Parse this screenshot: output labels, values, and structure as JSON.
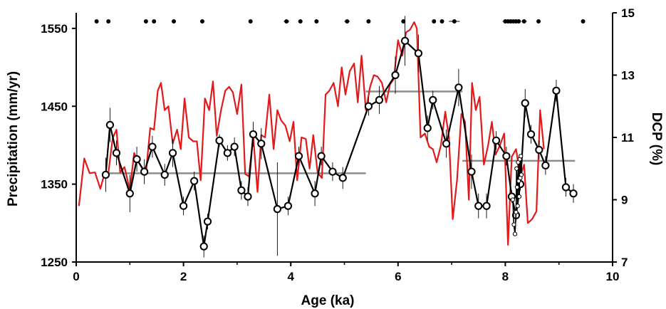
{
  "chart_data": {
    "type": "line",
    "xlabel": "Age (ka)",
    "ylabel": "Precipitation (mm/yr)",
    "y2label": "DCP (%)",
    "xlim": [
      0,
      10
    ],
    "ylim": [
      1250,
      1570
    ],
    "y2lim": [
      7,
      15
    ],
    "x_ticks": [
      "0",
      "2",
      "4",
      "6",
      "8",
      "10"
    ],
    "y_ticks": [
      "1250",
      "1350",
      "1450",
      "1550"
    ],
    "y2_ticks": [
      "7",
      "9",
      "11",
      "13",
      "15"
    ],
    "colors": {
      "red": "#e31a1c",
      "black": "#000000",
      "gray": "#8c8c8c"
    },
    "series": [
      {
        "axis": "left",
        "style": "red line",
        "x": [
          0.05,
          0.15,
          0.25,
          0.35,
          0.45,
          0.52,
          0.6,
          0.68,
          0.75,
          0.82,
          0.9,
          1.0,
          1.08,
          1.15,
          1.22,
          1.3,
          1.38,
          1.45,
          1.52,
          1.58,
          1.65,
          1.72,
          1.8,
          1.88,
          1.95,
          2.02,
          2.1,
          2.18,
          2.25,
          2.32,
          2.4,
          2.48,
          2.55,
          2.62,
          2.7,
          2.78,
          2.85,
          2.92,
          3.0,
          3.08,
          3.15,
          3.22,
          3.3,
          3.38,
          3.45,
          3.52,
          3.6,
          3.68,
          3.75,
          3.82,
          3.9,
          3.98,
          4.05,
          4.12,
          4.2,
          4.28,
          4.35,
          4.42,
          4.5,
          4.58,
          4.65,
          4.72,
          4.8,
          4.88,
          4.95,
          5.02,
          5.1,
          5.18,
          5.25,
          5.32,
          5.4,
          5.48,
          5.55,
          5.62,
          5.7,
          5.78,
          5.85,
          5.92,
          6.0,
          6.08,
          6.15,
          6.22,
          6.3,
          6.35,
          6.42,
          6.5,
          6.58,
          6.65,
          6.72,
          6.8,
          6.88,
          6.95,
          7.02,
          7.1,
          7.18,
          7.25,
          7.32,
          7.38,
          7.45,
          7.52,
          7.6,
          7.68,
          7.75,
          7.82,
          7.9,
          7.98,
          8.05,
          8.12,
          8.2,
          8.28,
          8.35,
          8.42,
          8.5,
          8.58,
          8.65,
          8.72
        ],
        "y": [
          1322,
          1383,
          1364,
          1365,
          1344,
          1362,
          1365,
          1409,
          1420,
          1365,
          1372,
          1342,
          1390,
          1380,
          1372,
          1365,
          1422,
          1420,
          1470,
          1480,
          1445,
          1450,
          1402,
          1420,
          1395,
          1460,
          1410,
          1405,
          1405,
          1355,
          1460,
          1445,
          1482,
          1412,
          1445,
          1470,
          1475,
          1468,
          1440,
          1478,
          1363,
          1360,
          1412,
          1340,
          1413,
          1410,
          1465,
          1395,
          1445,
          1432,
          1425,
          1405,
          1430,
          1355,
          1410,
          1408,
          1370,
          1413,
          1365,
          1358,
          1465,
          1470,
          1480,
          1450,
          1500,
          1465,
          1495,
          1505,
          1455,
          1515,
          1445,
          1475,
          1490,
          1488,
          1480,
          1455,
          1478,
          1485,
          1535,
          1515,
          1545,
          1548,
          1558,
          1550,
          1410,
          1415,
          1398,
          1395,
          1378,
          1400,
          1443,
          1410,
          1305,
          1355,
          1440,
          1430,
          1330,
          1480,
          1445,
          1462,
          1375,
          1400,
          1430,
          1388,
          1400,
          1415,
          1272,
          1385,
          1395,
          1360,
          1375,
          1300,
          1305,
          1315,
          1445,
          1395
        ]
      },
      {
        "axis": "right",
        "style": "black line with open circles",
        "x": [
          0.55,
          0.63,
          0.75,
          1.0,
          1.13,
          1.27,
          1.42,
          1.65,
          1.8,
          2.0,
          2.2,
          2.38,
          2.45,
          2.67,
          2.82,
          2.95,
          3.08,
          3.2,
          3.3,
          3.45,
          3.75,
          3.95,
          4.15,
          4.45,
          4.57,
          4.78,
          4.97,
          5.45,
          5.65,
          5.95,
          6.13,
          6.38,
          6.55,
          6.65,
          6.9,
          7.13,
          7.37,
          7.5,
          7.65,
          7.83,
          8.02,
          8.12,
          8.2,
          8.28,
          8.37,
          8.48,
          8.63,
          8.75,
          8.95,
          9.13,
          9.27
        ],
        "y": [
          9.8,
          11.4,
          10.5,
          9.2,
          10.3,
          9.9,
          10.7,
          9.8,
          10.5,
          8.8,
          9.6,
          7.5,
          8.3,
          10.9,
          10.5,
          10.7,
          9.3,
          9.1,
          11.1,
          10.8,
          8.7,
          8.8,
          10.4,
          9.2,
          10.4,
          9.9,
          9.7,
          12.0,
          12.2,
          13.0,
          14.1,
          13.7,
          11.3,
          12.2,
          10.8,
          12.6,
          9.9,
          8.8,
          8.8,
          10.9,
          10.4,
          9.1,
          8.5,
          9.5,
          12.1,
          11.1,
          10.6,
          10.1,
          12.5,
          9.4,
          9.2
        ],
        "y_err": [
          0.55,
          0.55,
          0.4,
          0.6,
          0.4,
          0.4,
          0.35,
          0.35,
          0.45,
          0.3,
          0.3,
          0.35,
          0.25,
          0.2,
          0.25,
          0.3,
          0.3,
          0.3,
          0.4,
          0.5,
          1.5,
          0.3,
          0.3,
          0.4,
          0.3,
          0.3,
          0.35,
          0.3,
          0.45,
          0.6,
          0.8,
          0.6,
          0.4,
          0.3,
          0.45,
          0.6,
          0.55,
          0.4,
          0.4,
          0.3,
          0.3,
          0.2,
          0.2,
          0.2,
          0.45,
          0.3,
          0.3,
          0.3,
          0.35,
          0.3,
          0.3
        ]
      },
      {
        "axis": "right",
        "style": "small open circles cluster",
        "x": [
          8.14,
          8.16,
          8.18,
          8.2,
          8.21,
          8.22,
          8.23,
          8.24,
          8.25,
          8.26,
          8.27,
          8.28,
          8.29,
          8.3
        ],
        "y": [
          9.0,
          8.2,
          7.9,
          8.6,
          10.0,
          9.4,
          8.8,
          10.2,
          9.6,
          9.1,
          10.3,
          9.7,
          10.4,
          9.8
        ]
      },
      {
        "axis": "left",
        "style": "gray step mean",
        "segments": [
          {
            "x": [
              0.5,
              5.4
            ],
            "y": 1364
          },
          {
            "x": [
              5.4,
              7.2
            ],
            "y": 1469
          },
          {
            "x": [
              7.2,
              9.3
            ],
            "y": 1380
          }
        ]
      },
      {
        "axis": "top",
        "style": "black dots with horizontal error",
        "x": [
          0.38,
          0.6,
          1.3,
          1.45,
          1.82,
          2.35,
          3.25,
          3.92,
          4.18,
          4.48,
          5.05,
          5.45,
          6.1,
          6.67,
          6.82,
          7.05,
          8.0,
          8.05,
          8.1,
          8.15,
          8.2,
          8.25,
          8.35,
          8.62,
          9.45
        ],
        "x_err": [
          0,
          0,
          0,
          0,
          0,
          0,
          0,
          0.05,
          0,
          0,
          0.05,
          0,
          0.03,
          0,
          0,
          0.1,
          0.05,
          0.03,
          0.03,
          0.03,
          0.03,
          0.03,
          0.05,
          0.03,
          0
        ]
      }
    ]
  }
}
